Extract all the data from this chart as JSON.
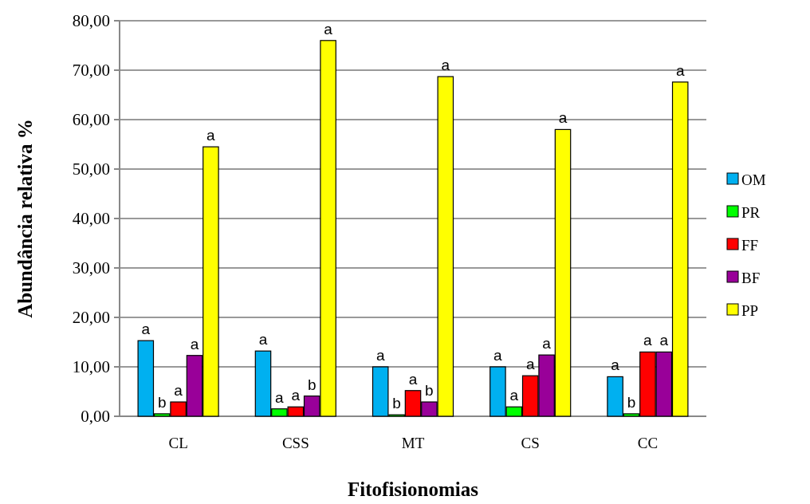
{
  "chart_data": {
    "type": "bar",
    "xlabel": "Fitofisionomias",
    "ylabel": "Abundância relativa %",
    "categories": [
      "CL",
      "CSS",
      "MT",
      "CS",
      "CC"
    ],
    "series": [
      {
        "name": "OM",
        "color": "#00b0f0",
        "values": [
          15.3,
          13.2,
          10,
          10,
          8
        ],
        "value_labels": [
          "a",
          "a",
          "a",
          "a",
          "a"
        ]
      },
      {
        "name": "PR",
        "color": "#00ff00",
        "values": [
          0.5,
          1.5,
          0.3,
          1.9,
          0.5
        ],
        "value_labels": [
          "b",
          "a",
          "b",
          "a",
          "b"
        ]
      },
      {
        "name": "FF",
        "color": "#ff0000",
        "values": [
          2.9,
          1.9,
          5.2,
          8.2,
          13
        ],
        "value_labels": [
          "a",
          "a",
          "a",
          "a",
          "a"
        ]
      },
      {
        "name": "BF",
        "color": "#990099",
        "values": [
          12.3,
          4.1,
          2.9,
          12.4,
          13
        ],
        "value_labels": [
          "a",
          "b",
          "b",
          "a",
          "a"
        ]
      },
      {
        "name": "PP",
        "color": "#ffff00",
        "values": [
          54.5,
          76,
          68.7,
          58,
          67.6
        ],
        "value_labels": [
          "a",
          "a",
          "a",
          "a",
          "a"
        ]
      }
    ],
    "ylim": [
      0,
      80
    ],
    "yticks": [
      {
        "value": 0,
        "label": "0,00"
      },
      {
        "value": 10,
        "label": "10,00"
      },
      {
        "value": 20,
        "label": "20,00"
      },
      {
        "value": 30,
        "label": "30,00"
      },
      {
        "value": 40,
        "label": "40,00"
      },
      {
        "value": 50,
        "label": "50,00"
      },
      {
        "value": 60,
        "label": "60,00"
      },
      {
        "value": 70,
        "label": "70,00"
      },
      {
        "value": 80,
        "label": "80,00"
      }
    ],
    "grid": "y",
    "legend": "right"
  }
}
